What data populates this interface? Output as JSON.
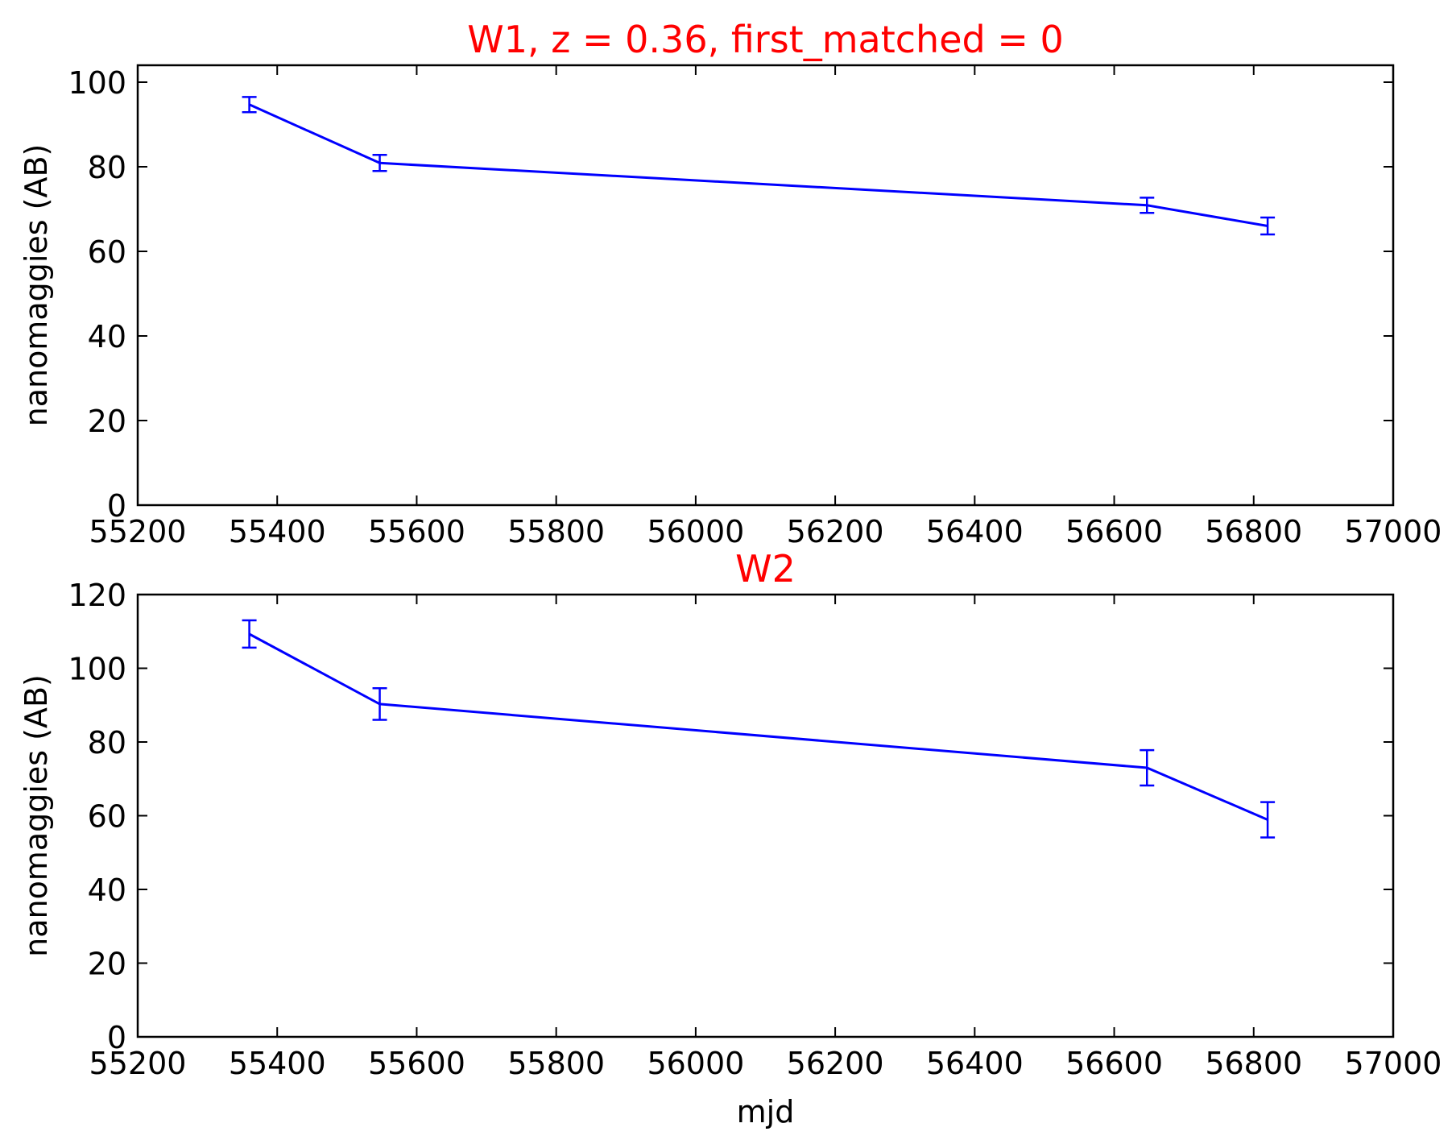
{
  "colors": {
    "title": "#ff0000",
    "series": "#0000ff",
    "axes": "#000000",
    "background": "#ffffff"
  },
  "chart_data": [
    {
      "type": "line",
      "title": "W1, z = 0.36, first_matched = 0",
      "xlabel": "",
      "ylabel": "nanomaggies (AB)",
      "xlim": [
        55200,
        57000
      ],
      "ylim": [
        0,
        104
      ],
      "xticks": [
        "55200",
        "55400",
        "55600",
        "55800",
        "56000",
        "56200",
        "56400",
        "56600",
        "56800",
        "57000"
      ],
      "yticks": [
        "0",
        "20",
        "40",
        "60",
        "80",
        "100"
      ],
      "grid": false,
      "legend": "none",
      "series": [
        {
          "x": [
            55360,
            55547,
            56647,
            56820
          ],
          "y": [
            94.7,
            80.9,
            70.9,
            66.0
          ],
          "yerr": [
            1.8,
            1.9,
            1.8,
            2.0
          ]
        }
      ]
    },
    {
      "type": "line",
      "title": "W2",
      "xlabel": "mjd",
      "ylabel": "nanomaggies (AB)",
      "xlim": [
        55200,
        57000
      ],
      "ylim": [
        0,
        120
      ],
      "xticks": [
        "55200",
        "55400",
        "55600",
        "55800",
        "56000",
        "56200",
        "56400",
        "56600",
        "56800",
        "57000"
      ],
      "yticks": [
        "0",
        "20",
        "40",
        "60",
        "80",
        "100",
        "120"
      ],
      "grid": false,
      "legend": "none",
      "series": [
        {
          "x": [
            55360,
            55547,
            56647,
            56820
          ],
          "y": [
            109.3,
            90.3,
            73.0,
            58.9
          ],
          "yerr": [
            3.7,
            4.3,
            4.8,
            4.8
          ]
        }
      ]
    }
  ]
}
